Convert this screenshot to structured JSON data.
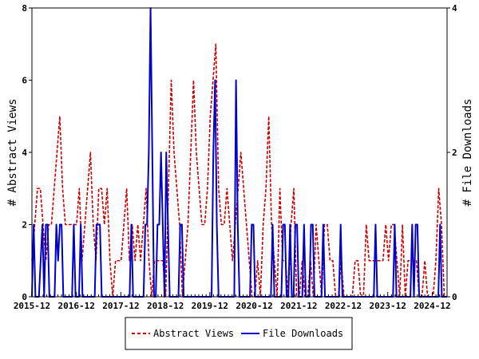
{
  "chart_data": {
    "type": "line",
    "x_tick_labels": [
      "2015-12",
      "2016-12",
      "2017-12",
      "2018-12",
      "2019-12",
      "2020-12",
      "2021-12",
      "2022-12",
      "2023-12",
      "2024-12"
    ],
    "left_axis": {
      "label": "# Abstract Views",
      "ylim": [
        0,
        8
      ],
      "ticks": [
        "0",
        "2",
        "4",
        "6",
        "8"
      ]
    },
    "right_axis": {
      "label": "# File Downloads",
      "ylim": [
        0,
        4
      ],
      "ticks": [
        "0",
        "2",
        "4"
      ]
    },
    "legend": {
      "placement": "bottom-center"
    },
    "series": [
      {
        "name": "Abstract Views",
        "axis": "left",
        "color": "#cc0000",
        "style": "dashed",
        "values": [
          1,
          2,
          3,
          3,
          2,
          1,
          2,
          2,
          3,
          4,
          5,
          3,
          2,
          2,
          2,
          2,
          2,
          3,
          1,
          2,
          3,
          4,
          2,
          1,
          3,
          3,
          2,
          3,
          1,
          0,
          1,
          1,
          1,
          2,
          3,
          1,
          2,
          1,
          2,
          1,
          2,
          3,
          1,
          0,
          1,
          1,
          1,
          1,
          0,
          3,
          6,
          4,
          3,
          2,
          0,
          1,
          2,
          4,
          6,
          4,
          3,
          2,
          2,
          3,
          5,
          6,
          7,
          3,
          2,
          2,
          3,
          2,
          1,
          2,
          3,
          4,
          3,
          2,
          1,
          0,
          0,
          1,
          0,
          2,
          3,
          5,
          2,
          1,
          0,
          3,
          1,
          1,
          0,
          2,
          3,
          0,
          0,
          1,
          0,
          0,
          1,
          0,
          2,
          1,
          0,
          2,
          2,
          1,
          1,
          0,
          0,
          1,
          0,
          0,
          0,
          0,
          1,
          1,
          0,
          0,
          2,
          1,
          1,
          1,
          1,
          1,
          1,
          2,
          1,
          2,
          2,
          1,
          0,
          2,
          0,
          1,
          1,
          1,
          1,
          0,
          0,
          1,
          0,
          0,
          0,
          1,
          3,
          2,
          0,
          0
        ]
      },
      {
        "name": "File Downloads",
        "axis": "right",
        "color": "#0000cc",
        "style": "solid",
        "values": [
          0,
          1,
          0,
          0,
          0,
          0.5,
          1,
          0,
          1,
          1,
          0,
          0,
          0,
          0,
          1,
          0.5,
          1,
          1,
          0,
          0,
          0,
          0,
          0,
          0,
          1,
          0,
          0,
          0,
          1,
          0,
          0,
          0,
          0,
          0,
          0,
          0,
          0,
          1,
          1,
          1,
          0,
          0,
          0,
          0,
          0,
          0,
          0,
          0,
          0,
          0,
          0,
          0,
          0,
          0,
          0,
          0,
          0,
          1,
          0,
          0,
          0,
          0,
          0,
          0,
          0,
          1,
          1,
          2,
          4,
          2,
          0,
          0,
          1,
          1,
          2,
          1,
          0,
          2,
          1,
          0,
          0,
          0,
          0,
          0,
          0,
          1,
          1,
          0,
          0,
          0,
          0,
          0,
          0,
          0,
          0,
          0,
          0,
          0,
          0,
          0,
          0,
          0,
          0,
          0,
          2,
          3,
          1,
          0,
          0,
          0,
          0,
          0,
          0,
          0,
          0,
          0,
          0,
          3,
          1,
          0,
          0,
          0,
          0,
          0,
          0,
          0,
          1,
          1,
          0,
          0,
          0,
          0,
          0,
          0,
          0,
          0,
          0,
          0,
          1,
          0,
          0,
          0,
          0,
          0,
          1,
          1,
          0,
          0,
          1,
          0,
          0,
          1,
          1,
          0,
          0,
          0,
          1,
          0,
          0,
          0,
          1,
          1,
          0,
          0,
          0,
          0,
          0,
          1,
          0,
          0,
          0,
          0,
          0,
          0,
          0,
          0,
          0,
          1,
          0,
          0,
          0,
          0,
          0,
          0,
          0,
          0,
          0,
          0,
          0,
          0,
          0,
          0,
          0,
          0,
          0,
          0,
          0,
          1,
          0,
          0,
          0,
          0,
          0,
          0,
          0,
          0,
          0,
          0,
          1,
          0,
          0,
          0,
          0,
          0,
          0,
          0,
          0,
          0,
          1,
          0,
          1,
          1,
          0,
          0,
          0,
          0,
          0,
          0,
          0,
          0,
          0,
          0,
          0,
          0,
          1,
          0,
          0,
          0,
          0
        ]
      }
    ]
  }
}
